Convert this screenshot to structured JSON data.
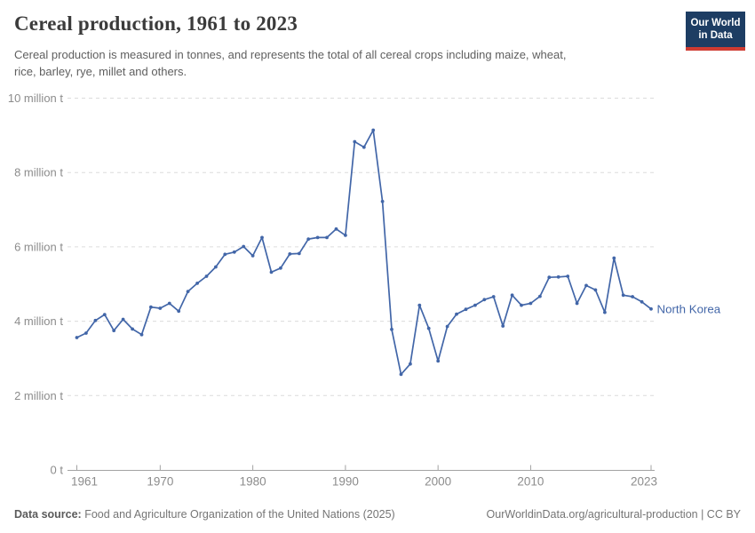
{
  "header": {
    "title": "Cereal production, 1961 to 2023",
    "subtitle": "Cereal production is measured in tonnes, and represents the total of all cereal crops including maize, wheat,\nrice, barley, rye, millet and others.",
    "logo": {
      "line1": "Our World",
      "line2": "in Data"
    }
  },
  "footer": {
    "source_label": "Data source:",
    "source_text": " Food and Agriculture Organization of the United Nations (2025)",
    "link_text": "OurWorldinData.org/agricultural-production | CC BY"
  },
  "colors": {
    "line": "#4266a8",
    "grid": "#dcdcdc",
    "axis": "#a3a3a3",
    "tick_label": "#8c8c8c",
    "logo_bg": "#1d3d63",
    "logo_stripe": "#cf3b31"
  },
  "chart_data": {
    "type": "line",
    "title": "Cereal production, 1961 to 2023",
    "unit": "tonnes",
    "entity_label": "North Korea",
    "grid": "horizontal-dashed",
    "legend_position": "end-of-line",
    "xlim": [
      1961,
      2023
    ],
    "ylim": [
      0,
      10000000
    ],
    "xticks": [
      1961,
      1970,
      1980,
      1990,
      2000,
      2010,
      2023
    ],
    "yticks": [
      {
        "value": 0,
        "label": "0 t"
      },
      {
        "value": 2000000,
        "label": "2 million t"
      },
      {
        "value": 4000000,
        "label": "4 million t"
      },
      {
        "value": 6000000,
        "label": "6 million t"
      },
      {
        "value": 8000000,
        "label": "8 million t"
      },
      {
        "value": 10000000,
        "label": "10 million t"
      }
    ],
    "series": [
      {
        "name": "North Korea",
        "x": [
          1961,
          1962,
          1963,
          1964,
          1965,
          1966,
          1967,
          1968,
          1969,
          1970,
          1971,
          1972,
          1973,
          1974,
          1975,
          1976,
          1977,
          1978,
          1979,
          1980,
          1981,
          1982,
          1983,
          1984,
          1985,
          1986,
          1987,
          1988,
          1989,
          1990,
          1991,
          1992,
          1993,
          1994,
          1995,
          1996,
          1997,
          1998,
          1999,
          2000,
          2001,
          2002,
          2003,
          2004,
          2005,
          2006,
          2007,
          2008,
          2009,
          2010,
          2011,
          2012,
          2013,
          2014,
          2015,
          2016,
          2017,
          2018,
          2019,
          2020,
          2021,
          2022,
          2023
        ],
        "values": [
          3560000,
          3680000,
          4020000,
          4180000,
          3750000,
          4050000,
          3790000,
          3640000,
          4380000,
          4350000,
          4480000,
          4270000,
          4800000,
          5020000,
          5210000,
          5460000,
          5800000,
          5860000,
          6010000,
          5760000,
          6250000,
          5320000,
          5430000,
          5810000,
          5820000,
          6210000,
          6250000,
          6250000,
          6480000,
          6310000,
          8830000,
          8680000,
          9140000,
          7220000,
          3780000,
          2570000,
          2850000,
          4430000,
          3810000,
          2930000,
          3860000,
          4190000,
          4320000,
          4430000,
          4580000,
          4660000,
          3870000,
          4700000,
          4430000,
          4480000,
          4670000,
          5180000,
          5190000,
          5210000,
          4480000,
          4960000,
          4840000,
          4240000,
          5700000,
          4700000,
          4660000,
          4520000,
          4330000
        ]
      }
    ]
  }
}
